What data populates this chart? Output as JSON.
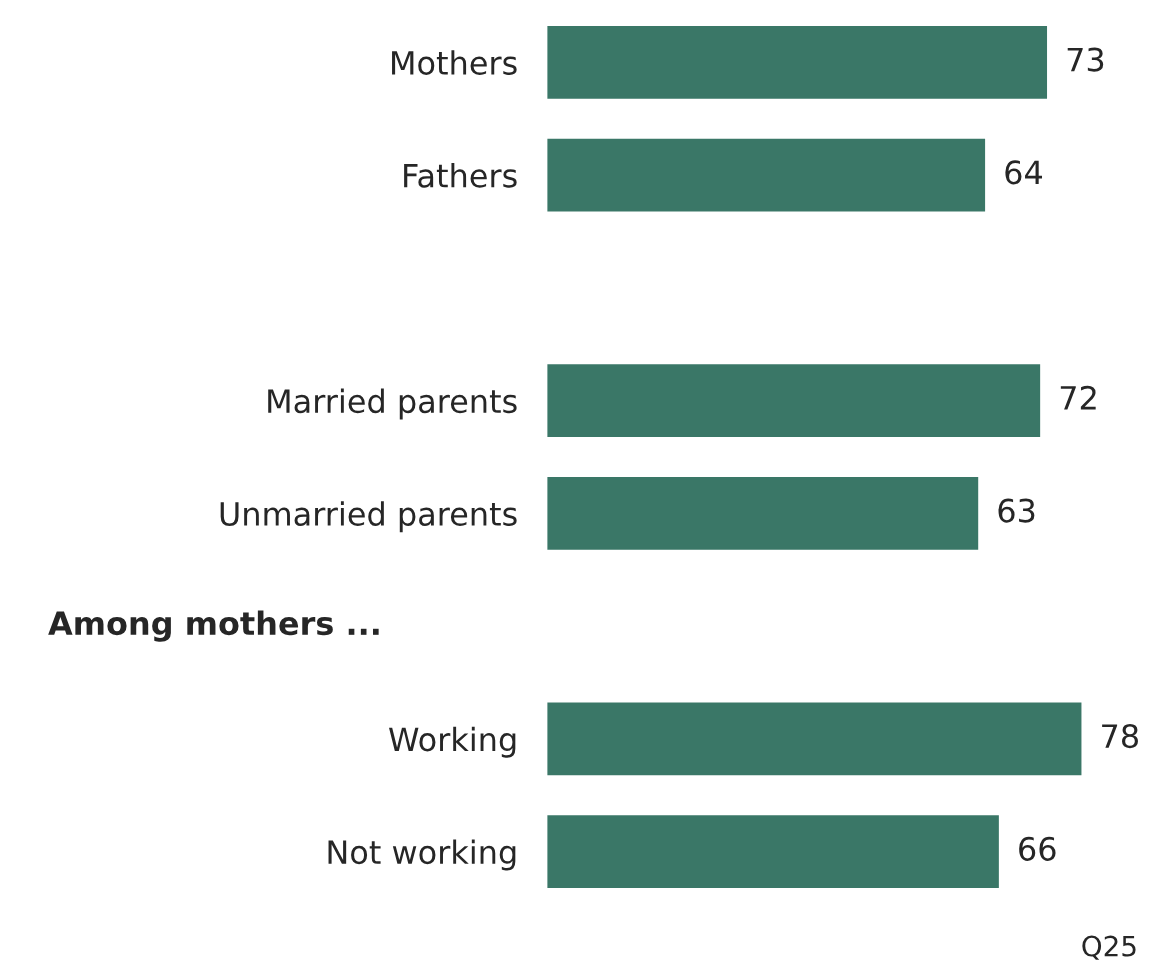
{
  "chart_data": {
    "type": "bar",
    "orientation": "horizontal",
    "categories": [
      "Mothers",
      "Fathers",
      null,
      "Married parents",
      "Unmarried parents",
      null,
      "Working",
      "Not working"
    ],
    "values": [
      73,
      64,
      null,
      72,
      63,
      null,
      78,
      66
    ],
    "color": "#3a7767",
    "data_labels": true,
    "annotations": [
      "Among mothers ...",
      "Q25"
    ]
  }
}
